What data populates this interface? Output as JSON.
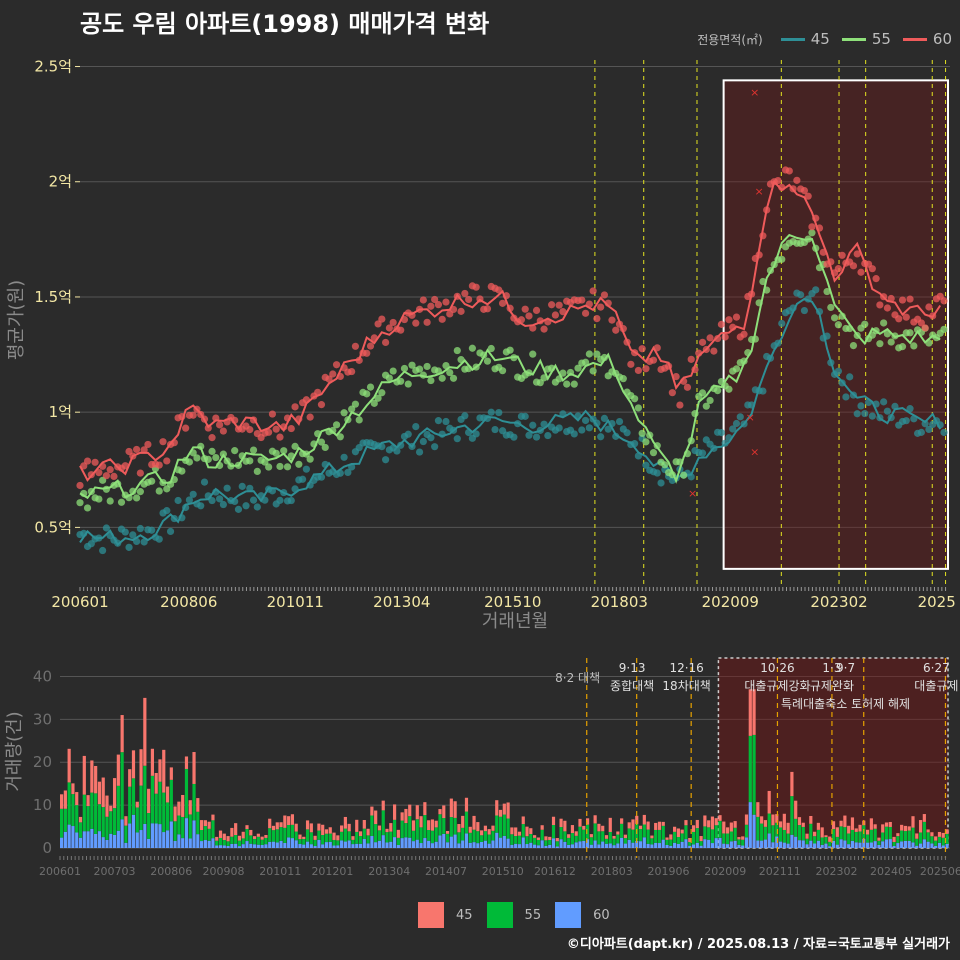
{
  "title": "공도 우림 아파트(1998) 매매가격 변화",
  "footer": "©디아파트(dapt.kr) / 2025.08.13 / 자료=국토교통부 실거래가",
  "legend_top": {
    "title": "전용면적(㎡)",
    "items": [
      {
        "label": "45",
        "color": "#2e8f96"
      },
      {
        "label": "55",
        "color": "#8ee07a"
      },
      {
        "label": "60",
        "color": "#ef5b5b"
      }
    ]
  },
  "legend_bottom": {
    "items": [
      {
        "label": "45",
        "color": "#f8766d"
      },
      {
        "label": "55",
        "color": "#00ba38"
      },
      {
        "label": "60",
        "color": "#619cff"
      }
    ]
  },
  "chart_data": [
    {
      "type": "line",
      "title": "공도 우림 아파트(1998) 매매가격 변화",
      "xlabel": "거래년월",
      "ylabel": "평균가(원)",
      "x_ticks": [
        "200601",
        "200806",
        "201011",
        "201304",
        "201510",
        "201803",
        "202009",
        "202302",
        "2025"
      ],
      "y_ticks": [
        "0.5억",
        "1억",
        "1.5억",
        "2억",
        "2.5억"
      ],
      "ylim": [
        0.25,
        2.55
      ],
      "y_unit": "억",
      "x_range": [
        "2006.0",
        "2025.6"
      ],
      "series": [
        {
          "name": "45",
          "color": "#2e8f96",
          "x": [
            2006.0,
            2006.5,
            2007.0,
            2007.5,
            2008.0,
            2008.5,
            2009.0,
            2009.5,
            2010.0,
            2010.5,
            2011.0,
            2011.5,
            2012.0,
            2012.5,
            2013.0,
            2013.5,
            2014.0,
            2014.5,
            2015.0,
            2015.5,
            2016.0,
            2016.5,
            2017.0,
            2017.5,
            2018.0,
            2018.5,
            2019.0,
            2019.5,
            2020.0,
            2020.5,
            2021.0,
            2021.5,
            2022.0,
            2022.5,
            2023.0,
            2023.5,
            2024.0,
            2024.5,
            2025.0,
            2025.5
          ],
          "y": [
            0.47,
            0.45,
            0.46,
            0.48,
            0.52,
            0.62,
            0.65,
            0.63,
            0.62,
            0.65,
            0.69,
            0.73,
            0.78,
            0.82,
            0.86,
            0.88,
            0.9,
            0.93,
            0.95,
            0.96,
            0.94,
            0.95,
            0.96,
            0.98,
            0.92,
            0.88,
            0.76,
            0.7,
            0.82,
            0.87,
            0.95,
            1.2,
            1.45,
            1.52,
            1.2,
            1.05,
            1.0,
            0.98,
            0.95,
            0.97
          ]
        },
        {
          "name": "55",
          "color": "#8ee07a",
          "x": [
            2006.0,
            2006.5,
            2007.0,
            2007.5,
            2008.0,
            2008.5,
            2009.0,
            2009.5,
            2010.0,
            2010.5,
            2011.0,
            2011.5,
            2012.0,
            2012.5,
            2013.0,
            2013.5,
            2014.0,
            2014.5,
            2015.0,
            2015.5,
            2016.0,
            2016.5,
            2017.0,
            2017.5,
            2018.0,
            2018.5,
            2019.0,
            2019.5,
            2020.0,
            2020.5,
            2021.0,
            2021.5,
            2022.0,
            2022.5,
            2023.0,
            2023.5,
            2024.0,
            2024.5,
            2025.0,
            2025.5
          ],
          "y": [
            0.63,
            0.65,
            0.67,
            0.69,
            0.72,
            0.84,
            0.78,
            0.8,
            0.79,
            0.8,
            0.83,
            0.9,
            0.97,
            1.05,
            1.13,
            1.17,
            1.19,
            1.21,
            1.23,
            1.24,
            1.2,
            1.18,
            1.17,
            1.2,
            1.22,
            1.0,
            0.82,
            0.72,
            1.05,
            1.1,
            1.2,
            1.6,
            1.77,
            1.78,
            1.45,
            1.32,
            1.34,
            1.33,
            1.32,
            1.31
          ]
        },
        {
          "name": "60",
          "color": "#ef5b5b",
          "x": [
            2006.0,
            2006.5,
            2007.0,
            2007.5,
            2008.0,
            2008.5,
            2009.0,
            2009.5,
            2010.0,
            2010.5,
            2011.0,
            2011.5,
            2012.0,
            2012.5,
            2013.0,
            2013.5,
            2014.0,
            2014.5,
            2015.0,
            2015.5,
            2016.0,
            2016.5,
            2017.0,
            2017.5,
            2018.0,
            2018.5,
            2019.0,
            2019.5,
            2020.0,
            2020.5,
            2021.0,
            2021.5,
            2022.0,
            2022.5,
            2023.0,
            2023.5,
            2024.0,
            2024.5,
            2025.0,
            2025.5
          ],
          "y": [
            0.73,
            0.75,
            0.77,
            0.8,
            0.85,
            1.02,
            0.94,
            0.96,
            0.95,
            0.93,
            0.98,
            1.1,
            1.2,
            1.3,
            1.38,
            1.42,
            1.45,
            1.48,
            1.5,
            1.49,
            1.4,
            1.42,
            1.43,
            1.47,
            1.45,
            1.2,
            1.28,
            1.08,
            1.25,
            1.33,
            1.4,
            1.95,
            2.02,
            1.85,
            1.6,
            1.7,
            1.52,
            1.45,
            1.42,
            1.48
          ]
        }
      ],
      "policy_lines_x": [
        2017.6,
        2018.7,
        2019.9,
        2021.8,
        2023.1,
        2023.7,
        2025.2,
        2025.5
      ],
      "highlight_box": {
        "x_from": 2020.5,
        "x_to": 2025.6,
        "y_from": 0.32,
        "y_to": 2.44
      }
    },
    {
      "type": "bar",
      "stacked": true,
      "ylabel": "거래량(건)",
      "y_ticks": [
        "0",
        "10",
        "20",
        "30",
        "40"
      ],
      "ylim": [
        0,
        45
      ],
      "x_ticks": [
        "200601",
        "200703",
        "200806",
        "200908",
        "201011",
        "201201",
        "201304",
        "201407",
        "201510",
        "201612",
        "201803",
        "201906",
        "202009",
        "202111",
        "202302",
        "202405",
        "202506"
      ],
      "series_names": [
        "45",
        "55",
        "60"
      ],
      "series_colors": [
        "#f8766d",
        "#00ba38",
        "#619cff"
      ],
      "monthly_totals_sample": {
        "2006-2008 peak": 35,
        "2007 high": 31,
        "2021 peak": 37,
        "typical 2010-2019": 5
      },
      "annotations": [
        {
          "date": "8·2",
          "label": "8·2 대책",
          "x": 2017.6
        },
        {
          "date": "9·13",
          "label": "종합대책",
          "x": 2018.7
        },
        {
          "date": "12·16",
          "label": "18차대책",
          "x": 2019.9
        },
        {
          "date": "10·26",
          "label": "대출규제강화",
          "x": 2021.8
        },
        {
          "date": "1·3",
          "label": "규제완화",
          "x": 2023.0
        },
        {
          "date": "9·7",
          "label": "특례대출축소 토허제 해제",
          "x": 2023.7
        },
        {
          "date": "6·27",
          "label": "대출규제",
          "x": 2025.5
        }
      ]
    }
  ]
}
